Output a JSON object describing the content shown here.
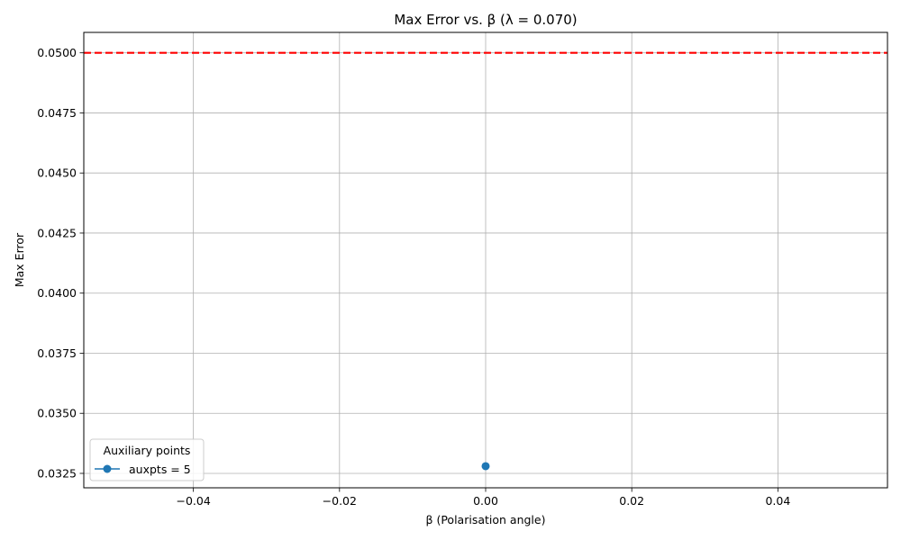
{
  "chart_data": {
    "type": "scatter",
    "title": "Max Error vs. β (λ = 0.070)",
    "xlabel": "β (Polarisation angle)",
    "ylabel": "Max Error",
    "xlim": [
      -0.055,
      0.055
    ],
    "ylim": [
      0.0319,
      0.05085
    ],
    "x_ticks": [
      -0.04,
      -0.02,
      0.0,
      0.02,
      0.04
    ],
    "x_tick_labels": [
      "−0.04",
      "−0.02",
      "0.00",
      "0.02",
      "0.04"
    ],
    "y_ticks": [
      0.0325,
      0.035,
      0.0375,
      0.04,
      0.0425,
      0.045,
      0.0475,
      0.05
    ],
    "y_tick_labels": [
      "0.0325",
      "0.0350",
      "0.0375",
      "0.0400",
      "0.0425",
      "0.0450",
      "0.0475",
      "0.0500"
    ],
    "grid": true,
    "series": [
      {
        "name": "auxpts = 5",
        "x": [
          0.0
        ],
        "y": [
          0.0328
        ],
        "color": "#1f77b4",
        "marker": "circle"
      }
    ],
    "reference_line": {
      "y": 0.05,
      "color": "#ff0000",
      "style": "dashed"
    },
    "legend": {
      "title": "Auxiliary points",
      "placement": "lower-left"
    }
  }
}
